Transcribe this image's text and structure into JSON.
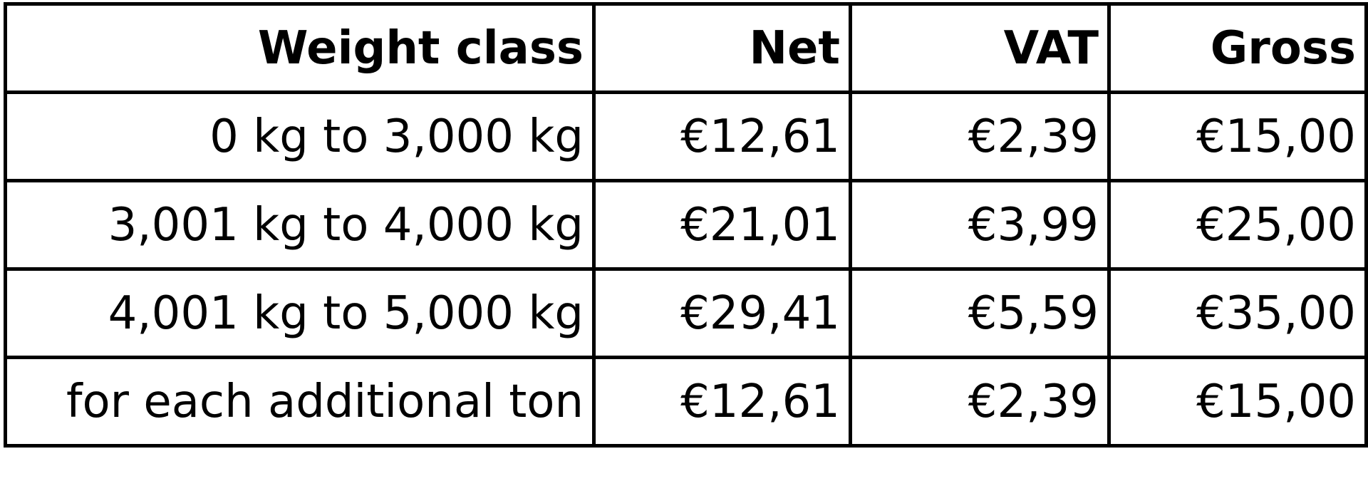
{
  "table": {
    "headers": [
      "Weight class",
      "Net",
      "VAT",
      "Gross"
    ],
    "rows": [
      [
        "0 kg to 3,000 kg",
        "€12,61",
        "€2,39",
        "€15,00"
      ],
      [
        "3,001 kg to 4,000 kg",
        "€21,01",
        "€3,99",
        "€25,00"
      ],
      [
        "4,001 kg to 5,000 kg",
        "€29,41",
        "€5,59",
        "€35,00"
      ],
      [
        "for each additional ton",
        "€12,61",
        "€2,39",
        "€15,00"
      ]
    ]
  }
}
